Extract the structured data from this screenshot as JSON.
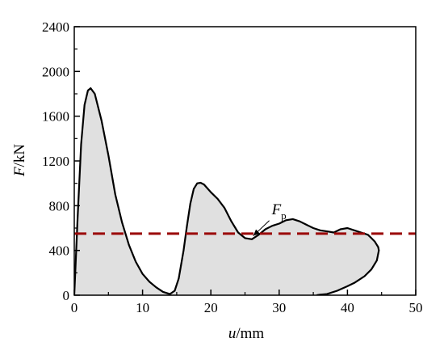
{
  "chart_data": {
    "type": "area",
    "xlabel": {
      "var": "u",
      "unit": "/mm"
    },
    "ylabel": {
      "var": "F",
      "unit": "/kN"
    },
    "xlim": [
      0,
      50
    ],
    "ylim": [
      0,
      2400
    ],
    "xticks": [
      0,
      10,
      20,
      30,
      40,
      50
    ],
    "yticks": [
      0,
      400,
      800,
      1200,
      1600,
      2000,
      2400
    ],
    "grid": false,
    "series": [
      {
        "style": "solid",
        "fill": "#e0e0e0",
        "color": "#000000",
        "x": [
          0,
          0.5,
          1.0,
          1.5,
          2.0,
          2.4,
          3.0,
          4.0,
          5.0,
          6.0,
          7.0,
          8.0,
          9.0,
          10.0,
          11.0,
          12.0,
          13.0,
          14.0,
          14.7,
          15.3,
          16.0,
          16.5,
          17.0,
          17.5,
          18.0,
          18.5,
          19.0,
          20.0,
          21.0,
          22.0,
          23.0,
          24.0,
          25.0,
          26.0,
          27.0,
          28.0,
          29.0,
          30.0,
          31.0,
          32.0,
          33.0,
          34.0,
          35.0,
          36.0,
          37.0,
          38.0,
          39.0,
          40.0,
          41.0,
          42.0,
          43.0,
          43.5,
          44.0,
          44.3,
          44.5,
          44.6,
          44.3,
          43.5,
          42.5,
          41.0,
          40.0,
          38.5,
          37.0,
          36.0,
          35.5
        ],
        "y": [
          0,
          700,
          1350,
          1700,
          1830,
          1850,
          1800,
          1560,
          1250,
          900,
          650,
          450,
          300,
          190,
          120,
          70,
          30,
          10,
          40,
          150,
          400,
          620,
          820,
          950,
          1000,
          1005,
          990,
          920,
          860,
          780,
          660,
          560,
          510,
          500,
          540,
          590,
          620,
          640,
          670,
          680,
          660,
          630,
          600,
          580,
          570,
          560,
          590,
          600,
          580,
          560,
          540,
          510,
          480,
          450,
          430,
          400,
          310,
          230,
          170,
          110,
          80,
          40,
          10,
          5,
          0
        ]
      },
      {
        "style": "dashed",
        "color": "#9b0a0a",
        "x": [
          0,
          50
        ],
        "y": [
          550,
          550
        ]
      }
    ],
    "annotations": [
      {
        "text": "F",
        "subscript": "p",
        "x": 29.5,
        "y": 710,
        "arrow_to": [
          26.2,
          530
        ]
      }
    ]
  }
}
